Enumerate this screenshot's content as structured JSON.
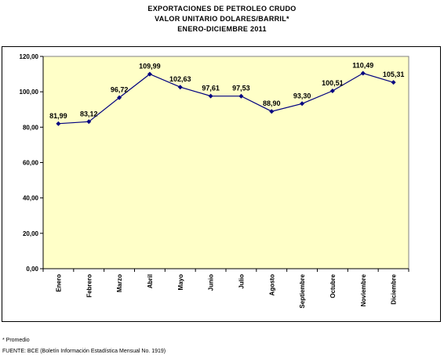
{
  "chart_data": {
    "type": "line",
    "title": [
      "EXPORTACIONES DE PETROLEO CRUDO",
      "VALOR UNITARIO DOLARES/BARRIL*",
      "ENERO-DICIEMBRE 2011"
    ],
    "categories": [
      "Enero",
      "Febrero",
      "Marzo",
      "Abril",
      "Mayo",
      "Junio",
      "Julio",
      "Agosto",
      "Septiembre",
      "Octubre",
      "Noviembre",
      "Diciembre"
    ],
    "values": [
      81.99,
      83.12,
      96.72,
      109.99,
      102.63,
      97.61,
      97.53,
      88.9,
      93.3,
      100.51,
      110.49,
      105.31
    ],
    "data_labels": [
      "81,99",
      "83,12",
      "96,72",
      "109,99",
      "102,63",
      "97,61",
      "97,53",
      "88,90",
      "93,30",
      "100,51",
      "110,49",
      "105,31"
    ],
    "y_ticks": [
      "0,00",
      "20,00",
      "40,00",
      "60,00",
      "80,00",
      "100,00",
      "120,00"
    ],
    "ylim": [
      0,
      120
    ],
    "grid": false,
    "legend": "none",
    "colors": {
      "plot_background": "#ffffc8",
      "line": "#000080",
      "marker": "#000080"
    }
  },
  "footnote": "* Promedio",
  "source": "FUENTE: BCE (Boletín Información Estadística Mensual No. 1919)"
}
